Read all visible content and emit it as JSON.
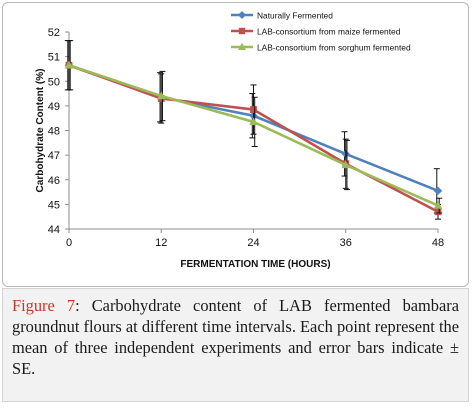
{
  "chart_data": {
    "type": "line",
    "title": "",
    "xlabel": "FERMENTATION TIME (HOURS)",
    "ylabel": "Carbohydrate Content (%)",
    "x": [
      0,
      12,
      24,
      36,
      48
    ],
    "xticks": [
      "0",
      "12",
      "24",
      "36",
      "48"
    ],
    "xlim": [
      0,
      48
    ],
    "ylim": [
      44,
      52
    ],
    "yticks": [
      "44",
      "45",
      "46",
      "47",
      "48",
      "49",
      "50",
      "51",
      "52"
    ],
    "grid": false,
    "legend_position": "top-right",
    "series": [
      {
        "name": "Naturally Fermented",
        "color": "#4f81bd",
        "marker": "diamond",
        "values": [
          50.65,
          49.35,
          48.6,
          47.05,
          45.55
        ],
        "errors": [
          1.0,
          1.0,
          0.9,
          0.9,
          0.9
        ]
      },
      {
        "name": "LAB-consortium from maize fermented",
        "color": "#c0504d",
        "marker": "square",
        "values": [
          50.65,
          49.3,
          48.85,
          46.65,
          44.7
        ],
        "errors": [
          1.0,
          1.0,
          1.0,
          1.0,
          0.3
        ]
      },
      {
        "name": "LAB-consortium from sorghum fermented",
        "color": "#9bbb59",
        "marker": "triangle",
        "values": [
          50.65,
          49.4,
          48.35,
          46.6,
          44.95
        ],
        "errors": [
          1.0,
          1.0,
          1.0,
          1.0,
          0.3
        ]
      }
    ]
  },
  "caption": {
    "label": "Figure 7",
    "text": ": Carbohydrate content of LAB fermented bambara groundnut flours at different time intervals. Each point represent the mean of three independent experiments and error bars indicate ± SE."
  }
}
